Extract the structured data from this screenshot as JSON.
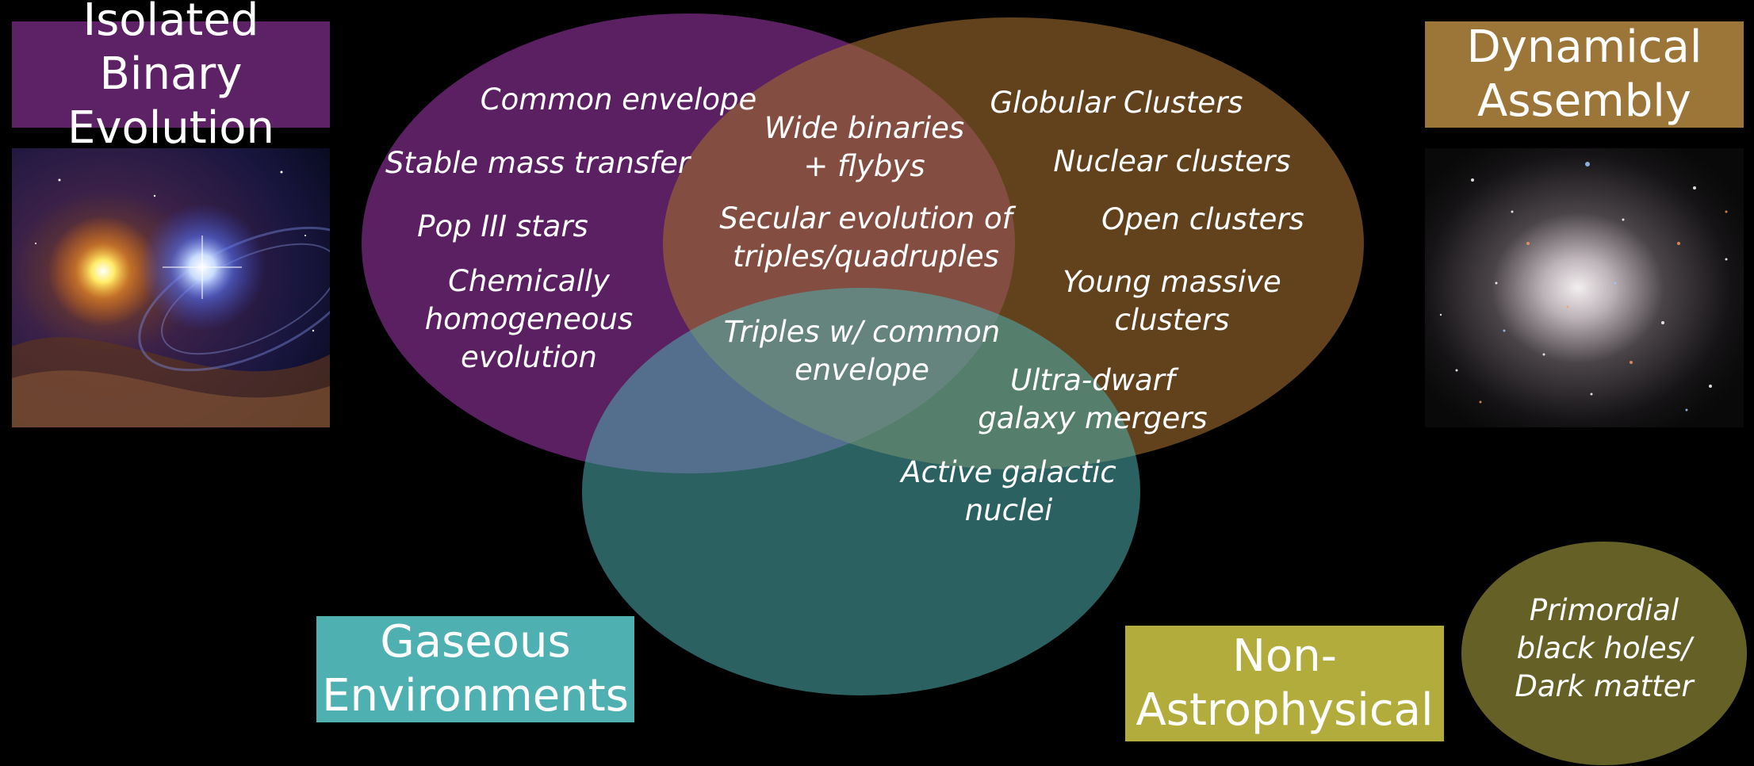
{
  "colors": {
    "isolated": "#5d2165",
    "dynamical": "#9c7538",
    "gaseous": "#4fb0b1",
    "non_astro": "#b2ac3c",
    "primordial": "#656126"
  },
  "categories": {
    "isolated": [
      "Isolated Binary",
      "Evolution"
    ],
    "dynamical": [
      "Dynamical",
      "Assembly"
    ],
    "gaseous": [
      "Gaseous",
      "Environments"
    ],
    "non_astro": [
      "Non-",
      "Astrophysical"
    ]
  },
  "labels": {
    "common_envelope": "Common envelope",
    "stable_mass_transfer": "Stable mass transfer",
    "pop_iii": "Pop III stars",
    "chem_homog": [
      "Chemically",
      "homogeneous",
      "evolution"
    ],
    "wide_binaries": [
      "Wide binaries",
      "+ flybys"
    ],
    "secular": [
      "Secular evolution of",
      "triples/quadruples"
    ],
    "triples_ce": [
      "Triples w/ common",
      "envelope"
    ],
    "globular": "Globular Clusters",
    "nuclear": "Nuclear clusters",
    "open": "Open clusters",
    "young_massive": [
      "Young massive",
      "clusters"
    ],
    "ultra_dwarf": [
      "Ultra-dwarf",
      "galaxy mergers"
    ],
    "agn": [
      "Active galactic",
      "nuclei"
    ],
    "primordial": [
      "Primordial",
      "black holes/",
      "Dark matter"
    ]
  }
}
